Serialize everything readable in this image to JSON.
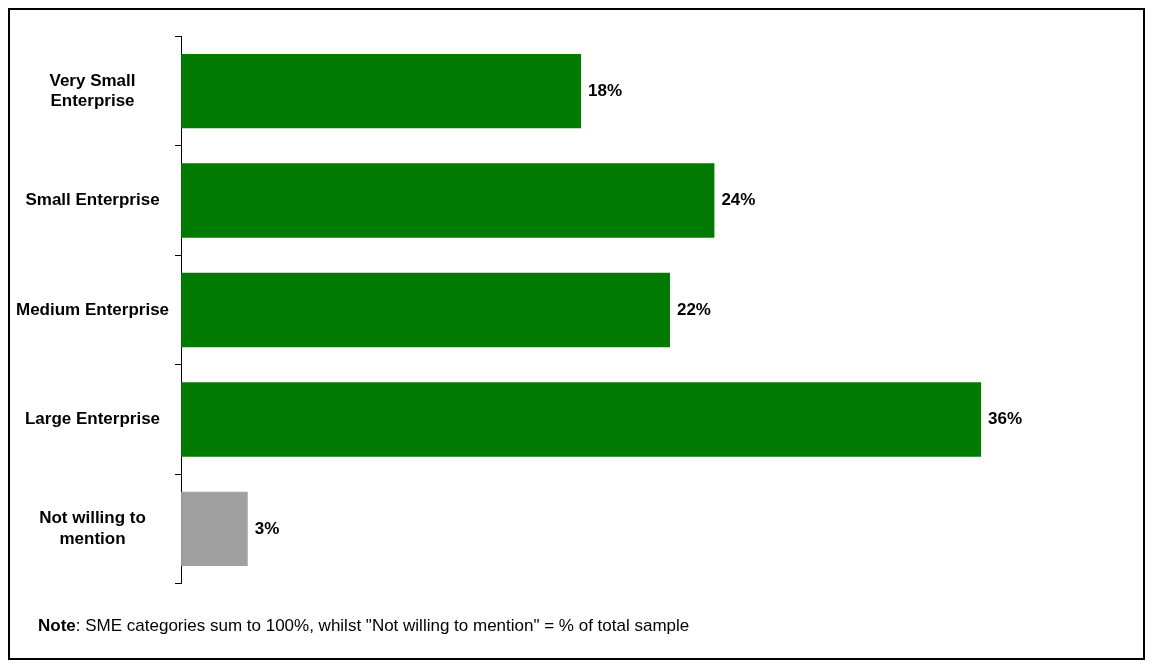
{
  "chart_data": {
    "type": "bar",
    "orientation": "horizontal",
    "categories": [
      "Very Small Enterprise",
      "Small Enterprise",
      "Medium Enterprise",
      "Large Enterprise",
      "Not willing to mention"
    ],
    "values": [
      18,
      24,
      22,
      36,
      3
    ],
    "colors": [
      "#007a00",
      "#007a00",
      "#007a00",
      "#007a00",
      "#a0a0a0"
    ],
    "value_labels": [
      "18%",
      "24%",
      "22%",
      "36%",
      "3%"
    ],
    "annotations": [
      "Note: SME categories sum to 100%, whilst \"Not willing to mention\" = % of total sample"
    ]
  }
}
